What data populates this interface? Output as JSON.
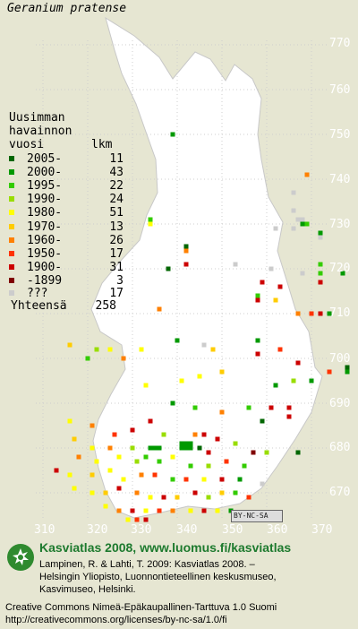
{
  "title": "Geranium pratense",
  "legend": {
    "heading": [
      "Uusimman",
      "havainnon",
      "vuosi"
    ],
    "count_header": "lkm",
    "rows": [
      {
        "label": "2005-",
        "count": "11",
        "color": "#006600"
      },
      {
        "label": "2000-",
        "count": "43",
        "color": "#009900"
      },
      {
        "label": "1995-",
        "count": "22",
        "color": "#33cc00"
      },
      {
        "label": "1990-",
        "count": "24",
        "color": "#99dd00"
      },
      {
        "label": "1980-",
        "count": "51",
        "color": "#ffff00"
      },
      {
        "label": "1970-",
        "count": "13",
        "color": "#ffcc00"
      },
      {
        "label": "1960-",
        "count": "26",
        "color": "#ff8000"
      },
      {
        "label": "1950-",
        "count": "17",
        "color": "#ff3300"
      },
      {
        "label": "1900-",
        "count": "31",
        "color": "#cc0000"
      },
      {
        "label": "-1899",
        "count": "3",
        "color": "#800000"
      },
      {
        "label": "???",
        "count": "17",
        "color": "#cccccc"
      }
    ],
    "total_label": "Yhteensä",
    "total_count": "258"
  },
  "grid_y_labels": [
    "770",
    "760",
    "750",
    "740",
    "730",
    "720",
    "710",
    "700",
    "690",
    "680",
    "670"
  ],
  "grid_x_labels": [
    "310",
    "320",
    "330",
    "340",
    "350",
    "360",
    "370"
  ],
  "cc_badge": "BY-NC-SA",
  "footer": {
    "main": "Kasviatlas 2008, www.luomus.fi/kasviatlas",
    "line1": "Lampinen, R. & Lahti, T. 2009: Kasviatlas 2008. –",
    "line2": "Helsingin Yliopisto, Luonnontieteellinen keskusmuseo,",
    "line3": "Kasvimuseo, Helsinki.",
    "cc1": "Creative Commons Nimeä-Epäkaupallinen-Tarttuva 1.0 Suomi",
    "cc2": "http://creativecommons.org/licenses/by-nc-sa/1.0/fi"
  },
  "observations": [
    {
      "x": 339,
      "y": 750,
      "c": 1
    },
    {
      "x": 369,
      "y": 741,
      "c": 6
    },
    {
      "x": 366,
      "y": 737,
      "c": 10
    },
    {
      "x": 366,
      "y": 733,
      "c": 10
    },
    {
      "x": 368,
      "y": 731,
      "c": 10
    },
    {
      "x": 334,
      "y": 731,
      "c": 2
    },
    {
      "x": 334,
      "y": 730,
      "c": 4
    },
    {
      "x": 367,
      "y": 731,
      "c": 10
    },
    {
      "x": 368,
      "y": 730,
      "c": 1
    },
    {
      "x": 369,
      "y": 730,
      "c": 2
    },
    {
      "x": 366,
      "y": 729,
      "c": 10
    },
    {
      "x": 362,
      "y": 729,
      "c": 10
    },
    {
      "x": 372,
      "y": 728,
      "c": 1
    },
    {
      "x": 372,
      "y": 727,
      "c": 10
    },
    {
      "x": 342,
      "y": 725,
      "c": 0
    },
    {
      "x": 342,
      "y": 724,
      "c": 6
    },
    {
      "x": 342,
      "y": 721,
      "c": 8
    },
    {
      "x": 353,
      "y": 721,
      "c": 10
    },
    {
      "x": 372,
      "y": 721,
      "c": 2
    },
    {
      "x": 338,
      "y": 720,
      "c": 0
    },
    {
      "x": 361,
      "y": 720,
      "c": 10
    },
    {
      "x": 368,
      "y": 719,
      "c": 10
    },
    {
      "x": 372,
      "y": 719,
      "c": 2
    },
    {
      "x": 359,
      "y": 717,
      "c": 8
    },
    {
      "x": 363,
      "y": 716,
      "c": 8
    },
    {
      "x": 372,
      "y": 717,
      "c": 8
    },
    {
      "x": 377,
      "y": 719,
      "c": 1
    },
    {
      "x": 358,
      "y": 714,
      "c": 2
    },
    {
      "x": 362,
      "y": 713,
      "c": 5
    },
    {
      "x": 358,
      "y": 713,
      "c": 8
    },
    {
      "x": 367,
      "y": 710,
      "c": 6
    },
    {
      "x": 370,
      "y": 710,
      "c": 7
    },
    {
      "x": 372,
      "y": 710,
      "c": 8
    },
    {
      "x": 374,
      "y": 710,
      "c": 1
    },
    {
      "x": 336,
      "y": 711,
      "c": 6
    },
    {
      "x": 316,
      "y": 703,
      "c": 5
    },
    {
      "x": 322,
      "y": 702,
      "c": 3
    },
    {
      "x": 325,
      "y": 702,
      "c": 4
    },
    {
      "x": 320,
      "y": 700,
      "c": 2
    },
    {
      "x": 328,
      "y": 700,
      "c": 6
    },
    {
      "x": 332,
      "y": 702,
      "c": 4
    },
    {
      "x": 340,
      "y": 704,
      "c": 1
    },
    {
      "x": 346,
      "y": 703,
      "c": 10
    },
    {
      "x": 348,
      "y": 702,
      "c": 5
    },
    {
      "x": 358,
      "y": 704,
      "c": 1
    },
    {
      "x": 358,
      "y": 701,
      "c": 8
    },
    {
      "x": 363,
      "y": 702,
      "c": 7
    },
    {
      "x": 367,
      "y": 699,
      "c": 8
    },
    {
      "x": 378,
      "y": 698,
      "c": 0
    },
    {
      "x": 378,
      "y": 697,
      "c": 1
    },
    {
      "x": 333,
      "y": 694,
      "c": 4
    },
    {
      "x": 341,
      "y": 695,
      "c": 4
    },
    {
      "x": 345,
      "y": 696,
      "c": 4
    },
    {
      "x": 350,
      "y": 697,
      "c": 5
    },
    {
      "x": 362,
      "y": 694,
      "c": 1
    },
    {
      "x": 366,
      "y": 695,
      "c": 3
    },
    {
      "x": 370,
      "y": 695,
      "c": 1
    },
    {
      "x": 374,
      "y": 697,
      "c": 7
    },
    {
      "x": 339,
      "y": 690,
      "c": 1
    },
    {
      "x": 344,
      "y": 689,
      "c": 2
    },
    {
      "x": 350,
      "y": 688,
      "c": 6
    },
    {
      "x": 356,
      "y": 689,
      "c": 2
    },
    {
      "x": 359,
      "y": 686,
      "c": 0
    },
    {
      "x": 361,
      "y": 689,
      "c": 8
    },
    {
      "x": 365,
      "y": 689,
      "c": 8
    },
    {
      "x": 365,
      "y": 687,
      "c": 8
    },
    {
      "x": 316,
      "y": 686,
      "c": 4
    },
    {
      "x": 321,
      "y": 685,
      "c": 6
    },
    {
      "x": 326,
      "y": 683,
      "c": 7
    },
    {
      "x": 330,
      "y": 684,
      "c": 8
    },
    {
      "x": 334,
      "y": 686,
      "c": 8
    },
    {
      "x": 337,
      "y": 683,
      "c": 3
    },
    {
      "x": 344,
      "y": 683,
      "c": 6
    },
    {
      "x": 346,
      "y": 683,
      "c": 8
    },
    {
      "x": 349,
      "y": 682,
      "c": 8
    },
    {
      "x": 353,
      "y": 681,
      "c": 3
    },
    {
      "x": 357,
      "y": 679,
      "c": 9
    },
    {
      "x": 360,
      "y": 679,
      "c": 3
    },
    {
      "x": 367,
      "y": 679,
      "c": 0
    },
    {
      "x": 317,
      "y": 682,
      "c": 5
    },
    {
      "x": 321,
      "y": 680,
      "c": 4
    },
    {
      "x": 325,
      "y": 680,
      "c": 6
    },
    {
      "x": 330,
      "y": 680,
      "c": 3
    },
    {
      "x": 334,
      "y": 680,
      "c": 1
    },
    {
      "x": 335,
      "y": 680,
      "c": 1
    },
    {
      "x": 336,
      "y": 680,
      "c": 1
    },
    {
      "x": 341,
      "y": 681,
      "c": 1
    },
    {
      "x": 342,
      "y": 681,
      "c": 1
    },
    {
      "x": 343,
      "y": 681,
      "c": 1
    },
    {
      "x": 341,
      "y": 680,
      "c": 1
    },
    {
      "x": 342,
      "y": 680,
      "c": 1
    },
    {
      "x": 343,
      "y": 680,
      "c": 1
    },
    {
      "x": 345,
      "y": 680,
      "c": 0
    },
    {
      "x": 347,
      "y": 679,
      "c": 8
    },
    {
      "x": 318,
      "y": 678,
      "c": 6
    },
    {
      "x": 322,
      "y": 677,
      "c": 4
    },
    {
      "x": 327,
      "y": 678,
      "c": 4
    },
    {
      "x": 331,
      "y": 677,
      "c": 3
    },
    {
      "x": 333,
      "y": 678,
      "c": 2
    },
    {
      "x": 336,
      "y": 677,
      "c": 2
    },
    {
      "x": 339,
      "y": 678,
      "c": 4
    },
    {
      "x": 343,
      "y": 676,
      "c": 2
    },
    {
      "x": 347,
      "y": 676,
      "c": 3
    },
    {
      "x": 351,
      "y": 677,
      "c": 7
    },
    {
      "x": 355,
      "y": 676,
      "c": 2
    },
    {
      "x": 313,
      "y": 675,
      "c": 8
    },
    {
      "x": 316,
      "y": 674,
      "c": 4
    },
    {
      "x": 321,
      "y": 674,
      "c": 5
    },
    {
      "x": 325,
      "y": 675,
      "c": 4
    },
    {
      "x": 328,
      "y": 673,
      "c": 4
    },
    {
      "x": 332,
      "y": 674,
      "c": 6
    },
    {
      "x": 335,
      "y": 674,
      "c": 7
    },
    {
      "x": 339,
      "y": 673,
      "c": 2
    },
    {
      "x": 342,
      "y": 673,
      "c": 7
    },
    {
      "x": 346,
      "y": 673,
      "c": 4
    },
    {
      "x": 350,
      "y": 673,
      "c": 8
    },
    {
      "x": 354,
      "y": 673,
      "c": 1
    },
    {
      "x": 359,
      "y": 672,
      "c": 10
    },
    {
      "x": 317,
      "y": 671,
      "c": 4
    },
    {
      "x": 321,
      "y": 670,
      "c": 4
    },
    {
      "x": 324,
      "y": 670,
      "c": 5
    },
    {
      "x": 327,
      "y": 671,
      "c": 8
    },
    {
      "x": 331,
      "y": 670,
      "c": 6
    },
    {
      "x": 334,
      "y": 669,
      "c": 4
    },
    {
      "x": 337,
      "y": 669,
      "c": 8
    },
    {
      "x": 340,
      "y": 669,
      "c": 5
    },
    {
      "x": 344,
      "y": 670,
      "c": 8
    },
    {
      "x": 347,
      "y": 669,
      "c": 3
    },
    {
      "x": 350,
      "y": 670,
      "c": 5
    },
    {
      "x": 353,
      "y": 670,
      "c": 2
    },
    {
      "x": 356,
      "y": 669,
      "c": 7
    },
    {
      "x": 324,
      "y": 667,
      "c": 4
    },
    {
      "x": 327,
      "y": 666,
      "c": 6
    },
    {
      "x": 330,
      "y": 666,
      "c": 8
    },
    {
      "x": 333,
      "y": 666,
      "c": 4
    },
    {
      "x": 336,
      "y": 666,
      "c": 7
    },
    {
      "x": 339,
      "y": 666,
      "c": 6
    },
    {
      "x": 343,
      "y": 666,
      "c": 4
    },
    {
      "x": 346,
      "y": 666,
      "c": 8
    },
    {
      "x": 349,
      "y": 666,
      "c": 4
    },
    {
      "x": 352,
      "y": 666,
      "c": 1
    },
    {
      "x": 329,
      "y": 664,
      "c": 4
    },
    {
      "x": 331,
      "y": 664,
      "c": 7
    },
    {
      "x": 333,
      "y": 664,
      "c": 8
    }
  ]
}
